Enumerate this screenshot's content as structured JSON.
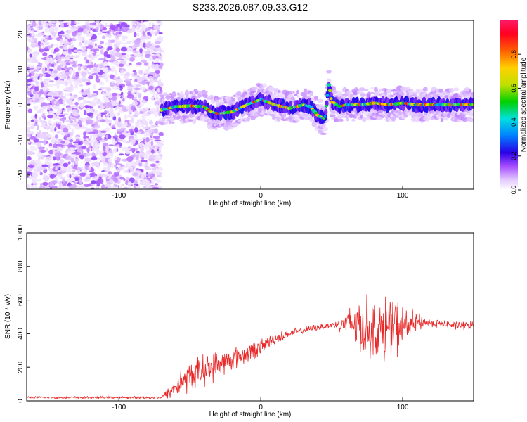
{
  "title": "S233.2026.087.09.33.G12",
  "chart_data": [
    {
      "type": "heatmap",
      "name": "spectrogram",
      "xlabel": "Height of straight line (km)",
      "ylabel": "Frequency (Hz)",
      "xlim": [
        -165,
        150
      ],
      "ylim": [
        -24,
        24
      ],
      "xticks": [
        -100,
        0,
        100
      ],
      "yticks": [
        -20,
        -10,
        0,
        10,
        20
      ],
      "colorbar": {
        "label": "Normalized spectral amplitude",
        "range": [
          0.0,
          1.0
        ],
        "ticks": [
          0.0,
          0.2,
          0.4,
          0.6,
          0.8
        ],
        "colors": [
          "#ffffff",
          "#e3c8ff",
          "#a64dff",
          "#2a00e6",
          "#0080ff",
          "#00e0e0",
          "#00d000",
          "#c0e000",
          "#ffd000",
          "#ff6000",
          "#ff0020",
          "#ff1a66"
        ]
      },
      "noise_region_x": [
        -165,
        -70
      ],
      "ridge_frequency": [
        [
          -70,
          -1.5
        ],
        [
          -60,
          -0.5
        ],
        [
          -50,
          -0.3
        ],
        [
          -40,
          -0.5
        ],
        [
          -35,
          -2
        ],
        [
          -30,
          -2.5
        ],
        [
          -20,
          -2
        ],
        [
          -10,
          0
        ],
        [
          0,
          1.5
        ],
        [
          10,
          0
        ],
        [
          20,
          -1
        ],
        [
          30,
          0
        ],
        [
          35,
          -0.5
        ],
        [
          40,
          -3
        ],
        [
          45,
          -4
        ],
        [
          48,
          6
        ],
        [
          50,
          1
        ],
        [
          55,
          -0.5
        ],
        [
          60,
          0
        ],
        [
          70,
          0
        ],
        [
          80,
          0.5
        ],
        [
          90,
          0
        ],
        [
          100,
          0.5
        ],
        [
          110,
          0
        ],
        [
          120,
          0
        ],
        [
          130,
          0
        ],
        [
          140,
          0
        ],
        [
          150,
          0
        ]
      ]
    },
    {
      "type": "line",
      "name": "snr",
      "xlabel": "Height of straight line (km)",
      "ylabel": "SNR (10 * v/v)",
      "xlim": [
        -165,
        150
      ],
      "ylim": [
        0,
        1000
      ],
      "xticks": [
        -100,
        0,
        100
      ],
      "yticks": [
        0,
        200,
        400,
        600,
        800,
        1000
      ],
      "color": "#e82828",
      "envelope": {
        "x": [
          -165,
          -100,
          -70,
          -63,
          -55,
          -45,
          -35,
          -25,
          -10,
          0,
          10,
          20,
          30,
          40,
          50,
          58,
          65,
          72,
          78,
          84,
          90,
          96,
          102,
          110,
          115,
          125,
          135,
          150
        ],
        "mean": [
          20,
          20,
          20,
          60,
          120,
          170,
          200,
          230,
          280,
          320,
          370,
          400,
          420,
          440,
          450,
          460,
          460,
          450,
          430,
          420,
          430,
          440,
          450,
          460,
          470,
          460,
          450,
          450
        ],
        "spread": [
          8,
          8,
          10,
          60,
          100,
          110,
          110,
          90,
          70,
          60,
          40,
          30,
          25,
          25,
          30,
          60,
          160,
          240,
          200,
          180,
          300,
          200,
          120,
          90,
          30,
          30,
          30,
          30
        ]
      }
    }
  ]
}
